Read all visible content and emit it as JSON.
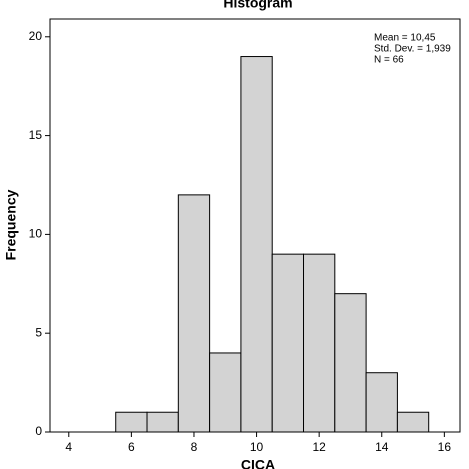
{
  "chart_data": {
    "type": "histogram",
    "title": "Histogram",
    "x_label": "CICA",
    "y_label": "Frequency",
    "bins": [
      5.5,
      6.5,
      7.5,
      8.5,
      9.5,
      10.5,
      11.5,
      12.5,
      13.5,
      14.5,
      15.5
    ],
    "counts": [
      1,
      1,
      12,
      4,
      19,
      9,
      9,
      7,
      3,
      1
    ],
    "color": "#d3d3d3",
    "xlim": [
      3.4,
      16.5
    ],
    "xticks": [
      4,
      6,
      8,
      10,
      12,
      14,
      16
    ],
    "ylim": [
      0,
      20.9
    ],
    "yticks": [
      0,
      5,
      10,
      15,
      20
    ],
    "annotations": [
      "Mean = 10,45",
      "Std. Dev. = 1,939",
      "N = 66"
    ]
  }
}
